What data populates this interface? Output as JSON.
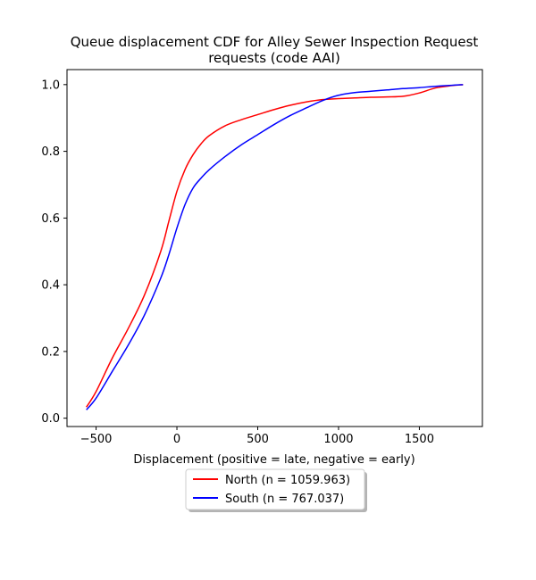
{
  "chart_data": {
    "type": "line",
    "title": "Queue displacement CDF for Alley Sewer Inspection Request requests (code AAI)",
    "title_lines": [
      "Queue displacement CDF for Alley Sewer Inspection Request",
      "requests (code AAI)"
    ],
    "xlabel": "Displacement (positive = late, negative = early)",
    "ylabel": "",
    "xlim": [
      -680,
      1890
    ],
    "ylim": [
      -0.025,
      1.045
    ],
    "xticks": [
      -500,
      0,
      500,
      1000,
      1500
    ],
    "xtick_labels": [
      "−500",
      "0",
      "500",
      "1000",
      "1500"
    ],
    "yticks": [
      0.0,
      0.2,
      0.4,
      0.6,
      0.8,
      1.0
    ],
    "ytick_labels": [
      "0.0",
      "0.2",
      "0.4",
      "0.6",
      "0.8",
      "1.0"
    ],
    "grid": false,
    "legend_position": "below",
    "series": [
      {
        "name": "North (n = 1059.963)",
        "color": "#ff0000",
        "x": [
          -560,
          -500,
          -400,
          -300,
          -200,
          -100,
          -50,
          0,
          50,
          100,
          150,
          200,
          300,
          400,
          500,
          600,
          700,
          800,
          900,
          1000,
          1100,
          1200,
          1300,
          1400,
          1500,
          1600,
          1700,
          1770
        ],
        "y": [
          0.033,
          0.08,
          0.18,
          0.27,
          0.37,
          0.5,
          0.59,
          0.68,
          0.745,
          0.79,
          0.823,
          0.847,
          0.877,
          0.895,
          0.91,
          0.925,
          0.938,
          0.948,
          0.955,
          0.958,
          0.96,
          0.962,
          0.963,
          0.965,
          0.975,
          0.99,
          0.997,
          1.0
        ]
      },
      {
        "name": "South (n = 767.037)",
        "color": "#0000ff",
        "x": [
          -560,
          -500,
          -400,
          -300,
          -200,
          -100,
          -50,
          0,
          50,
          100,
          150,
          200,
          300,
          400,
          500,
          600,
          700,
          800,
          900,
          1000,
          1100,
          1200,
          1300,
          1400,
          1500,
          1600,
          1700,
          1770
        ],
        "y": [
          0.025,
          0.06,
          0.14,
          0.22,
          0.31,
          0.42,
          0.49,
          0.57,
          0.64,
          0.69,
          0.72,
          0.745,
          0.785,
          0.82,
          0.85,
          0.88,
          0.907,
          0.93,
          0.952,
          0.968,
          0.976,
          0.98,
          0.984,
          0.988,
          0.991,
          0.995,
          0.998,
          1.0
        ]
      }
    ]
  }
}
